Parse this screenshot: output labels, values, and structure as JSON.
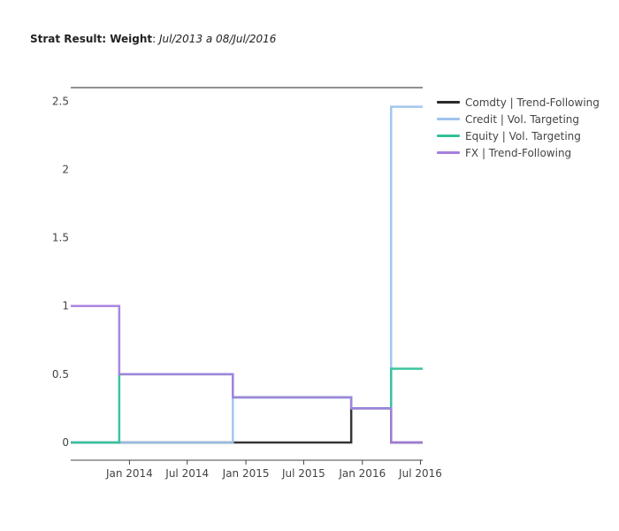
{
  "title": {
    "bold": "Strat Result: Weight",
    "colon": ":",
    "italic": "Jul/2013 a 08/Jul/2016"
  },
  "chart_data": {
    "type": "line",
    "line_shape": "step",
    "title": "Strat Result: Weight: Jul/2013 a 08/Jul/2016",
    "xlabel": "",
    "ylabel": "",
    "x_ticks": [
      {
        "date": "2014-01-01",
        "label": "Jan 2014"
      },
      {
        "date": "2014-07-01",
        "label": "Jul 2014"
      },
      {
        "date": "2015-01-01",
        "label": "Jan 2015"
      },
      {
        "date": "2015-07-01",
        "label": "Jul 2015"
      },
      {
        "date": "2016-01-01",
        "label": "Jan 2016"
      },
      {
        "date": "2016-07-01",
        "label": "Jul 2016"
      }
    ],
    "y_ticks": [
      0,
      0.5,
      1,
      1.5,
      2,
      2.5
    ],
    "y_tick_labels": [
      "0",
      "0.5",
      "1",
      "1.5",
      "2",
      "2.5"
    ],
    "xlim": [
      "2013-07-01",
      "2016-07-08"
    ],
    "ylim": [
      -0.13,
      2.6
    ],
    "grid": false,
    "legend_position": "top-right",
    "series": [
      {
        "name": "Comdty | Trend-Following",
        "color": "#2a2a2a",
        "x": [
          "2013-07-01",
          "2013-11-30",
          "2014-11-21",
          "2015-11-27",
          "2016-03-31",
          "2016-07-08"
        ],
        "values": [
          0,
          0,
          0,
          0.25,
          0,
          0
        ]
      },
      {
        "name": "Credit | Vol. Targeting",
        "color": "#9fc3ed",
        "x": [
          "2013-07-01",
          "2013-11-30",
          "2014-11-21",
          "2015-11-27",
          "2016-03-31",
          "2016-07-08"
        ],
        "values": [
          0,
          0,
          0.33,
          0.25,
          2.46,
          2.46
        ]
      },
      {
        "name": "Equity | Vol. Targeting",
        "color": "#33c19a",
        "x": [
          "2013-07-01",
          "2013-11-30",
          "2014-11-21",
          "2015-11-27",
          "2016-03-31",
          "2016-07-08"
        ],
        "values": [
          0,
          0.5,
          0.33,
          0.25,
          0.54,
          0.54
        ]
      },
      {
        "name": "FX | Trend-Following",
        "color": "#a57fe0",
        "x": [
          "2013-07-01",
          "2013-11-30",
          "2014-11-21",
          "2015-11-27",
          "2016-03-31",
          "2016-07-08"
        ],
        "values": [
          1,
          0.5,
          0.33,
          0.25,
          0,
          0
        ]
      }
    ]
  }
}
